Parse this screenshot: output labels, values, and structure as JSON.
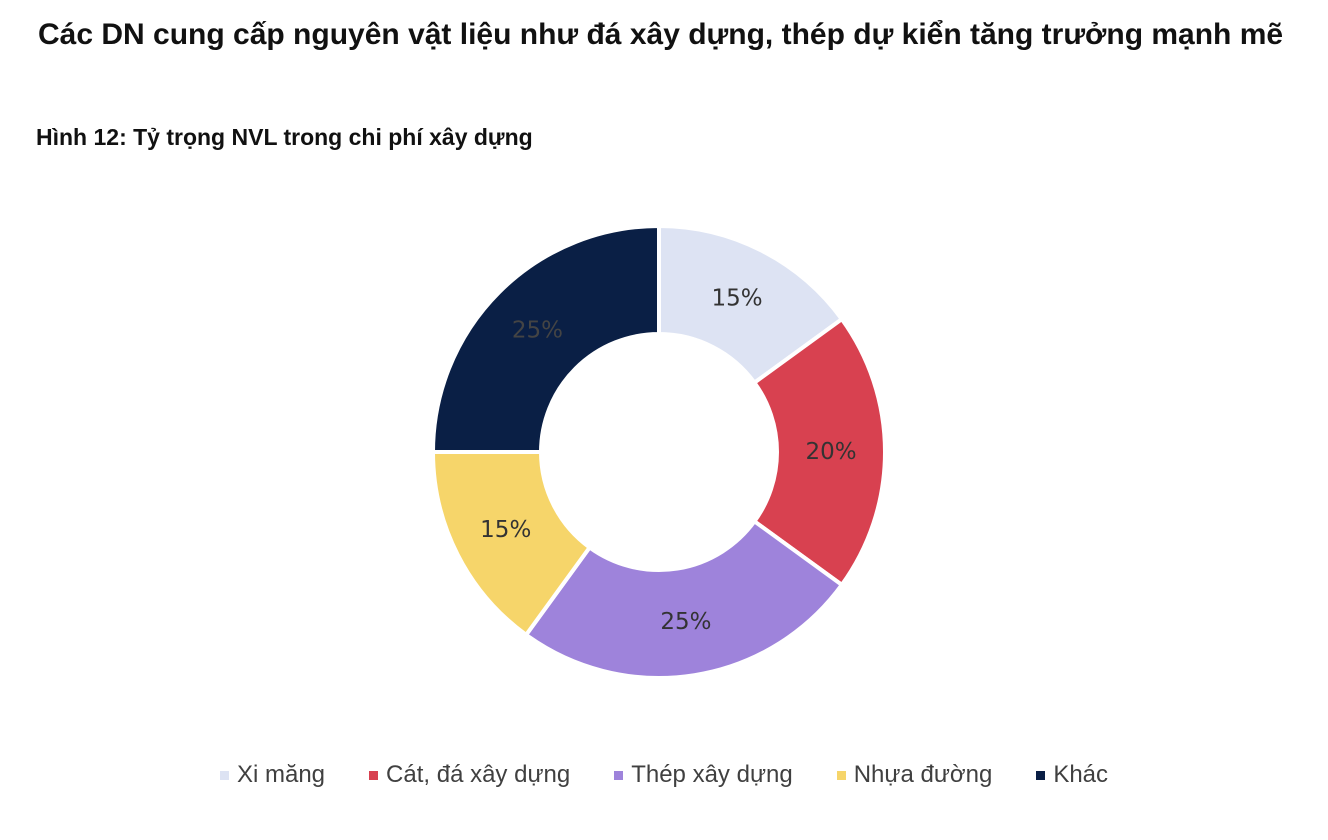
{
  "headline": "Các DN cung cấp nguyên vật liệu như đá xây dựng, thép dự kiển tăng trưởng mạnh mẽ",
  "chart_data": {
    "type": "pie",
    "variant": "donut",
    "title": "Hình 12: Tỷ trọng NVL trong chi phí xây dựng",
    "categories": [
      "Xi măng",
      "Cát, đá xây dựng",
      "Thép xây dựng",
      "Nhựa đường",
      "Khác"
    ],
    "values": [
      15,
      20,
      25,
      15,
      25
    ],
    "labels": [
      "15%",
      "20%",
      "25%",
      "15%",
      "25%"
    ],
    "colors": [
      "#dde3f3",
      "#d84150",
      "#9e83db",
      "#f6d56a",
      "#0a1f45"
    ],
    "label_colors": [
      "#333333",
      "#333333",
      "#333333",
      "#333333",
      "#444444"
    ],
    "legend_position": "bottom"
  }
}
